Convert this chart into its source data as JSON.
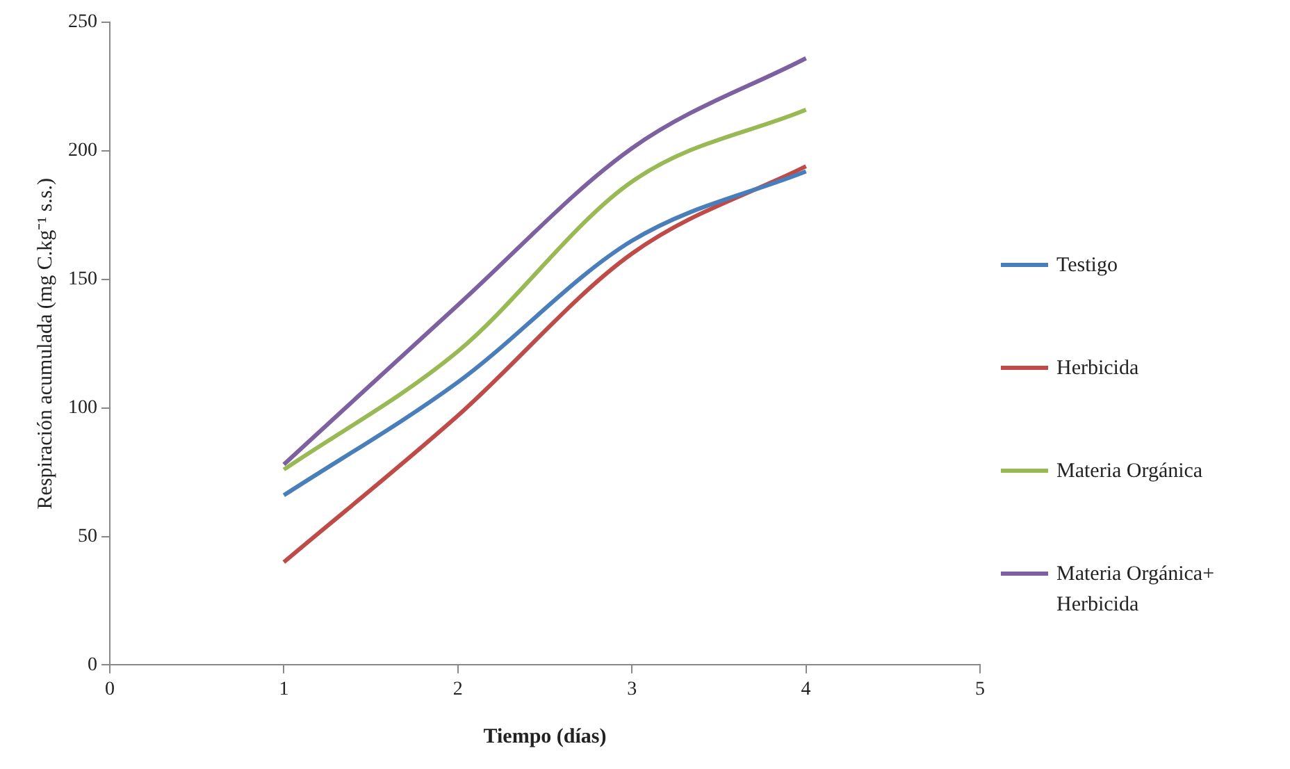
{
  "chart_data": {
    "type": "line",
    "xlabel": "Tiempo (días)",
    "ylabel": "Respiración acumulada (mg C.kg⁻¹ s.s.)",
    "x": [
      1,
      2,
      3,
      4
    ],
    "series": [
      {
        "name": "Testigo",
        "color": "#4a7ebb",
        "values": [
          66,
          110,
          165,
          192
        ]
      },
      {
        "name": "Herbicida",
        "color": "#be4b48",
        "values": [
          40,
          97,
          160,
          194
        ]
      },
      {
        "name": "Materia Orgánica",
        "color": "#98b954",
        "values": [
          76,
          122,
          188,
          216
        ]
      },
      {
        "name": "Materia Orgánica+ Herbicida",
        "color": "#7d60a0",
        "values": [
          78,
          140,
          201,
          236
        ]
      }
    ],
    "xlim": [
      0,
      5
    ],
    "xticks": [
      0,
      1,
      2,
      3,
      4,
      5
    ],
    "ylim": [
      0,
      250
    ],
    "yticks": [
      0,
      50,
      100,
      150,
      200,
      250
    ],
    "grid": false,
    "legend": "right",
    "marker": "none",
    "line_style": "solid"
  }
}
